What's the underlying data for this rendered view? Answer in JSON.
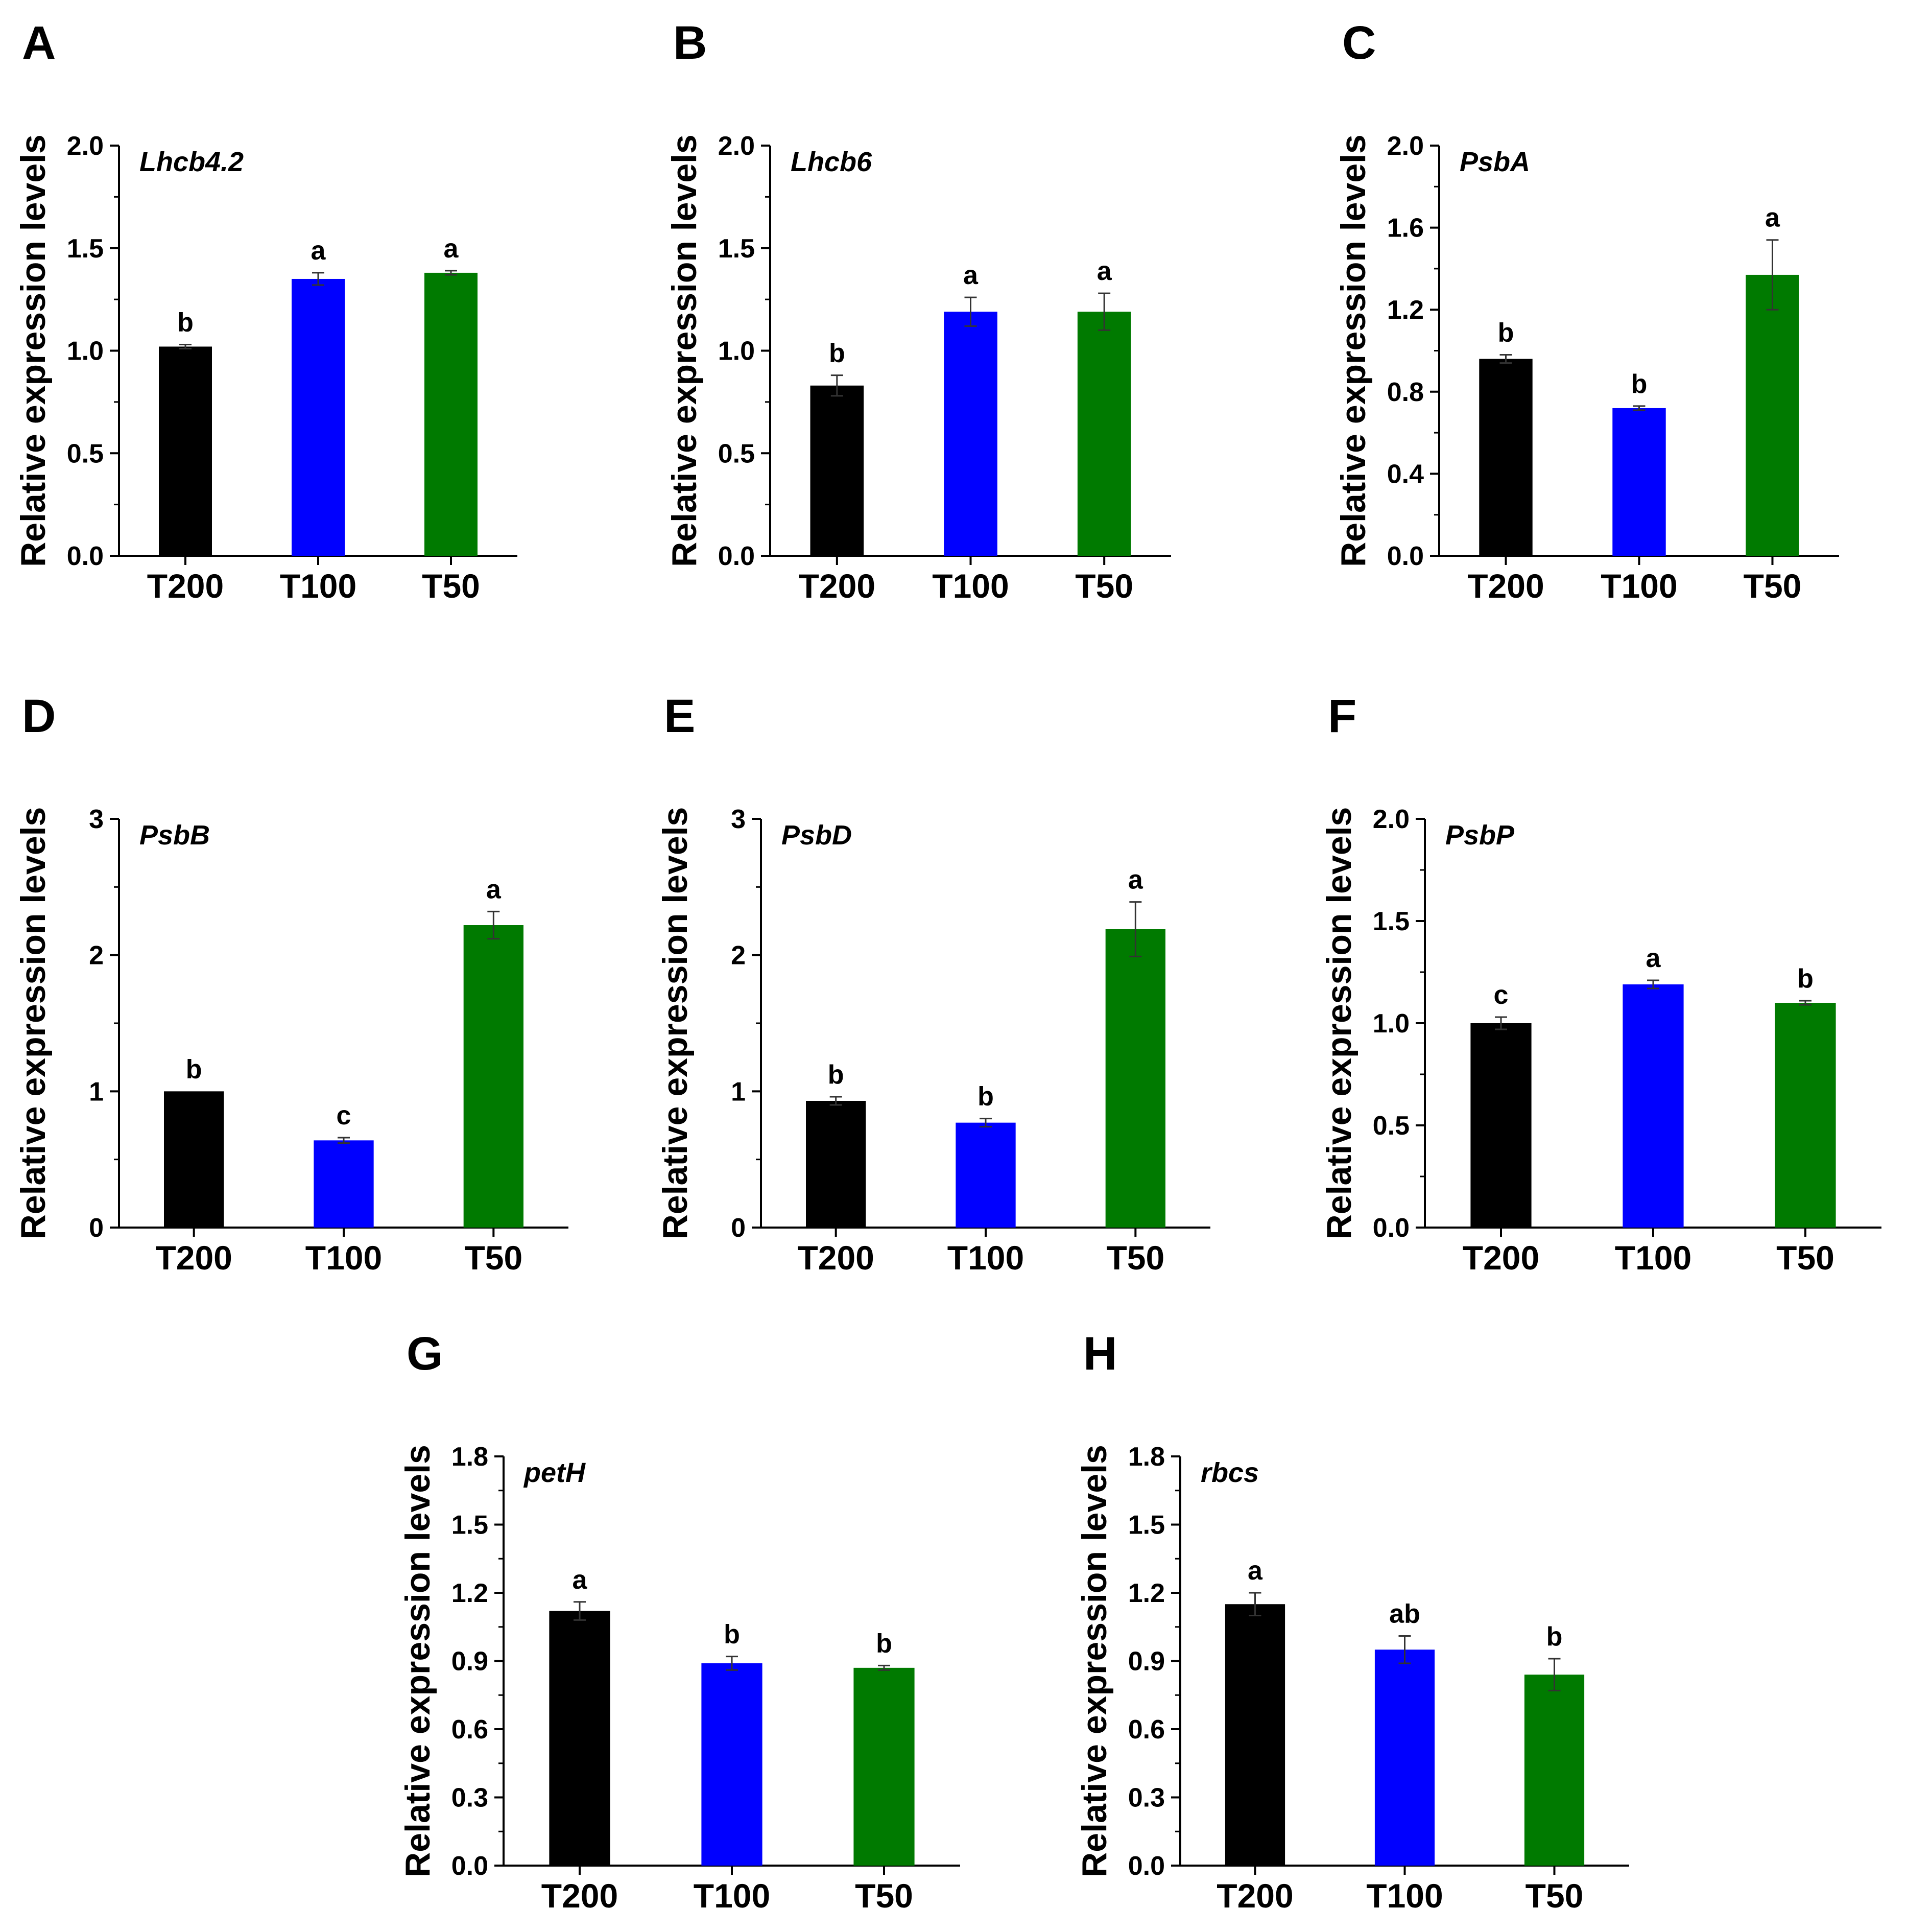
{
  "colors": {
    "T200": "#000000",
    "T100": "#0000ff",
    "T50": "#007a00",
    "axis": "#000000"
  },
  "chart_data": [
    {
      "type": "bar",
      "panel": "A",
      "title": "Lhcb4.2",
      "ylabel": "Relative expression levels",
      "categories": [
        "T200",
        "T100",
        "T50"
      ],
      "values": [
        1.02,
        1.35,
        1.38
      ],
      "errors": [
        0.01,
        0.03,
        0.01
      ],
      "significance": [
        "b",
        "a",
        "a"
      ],
      "ylim": [
        0,
        2.0
      ],
      "yticks": [
        0,
        0.5,
        1.0,
        1.5,
        2.0
      ],
      "ytick_labels": [
        "0.0",
        "0.5",
        "1.0",
        "1.5",
        "2.0"
      ]
    },
    {
      "type": "bar",
      "panel": "B",
      "title": "Lhcb6",
      "ylabel": "Relative expression levels",
      "categories": [
        "T200",
        "T100",
        "T50"
      ],
      "values": [
        0.83,
        1.19,
        1.19
      ],
      "errors": [
        0.05,
        0.07,
        0.09
      ],
      "significance": [
        "b",
        "a",
        "a"
      ],
      "ylim": [
        0,
        2.0
      ],
      "yticks": [
        0,
        0.5,
        1.0,
        1.5,
        2.0
      ],
      "ytick_labels": [
        "0.0",
        "0.5",
        "1.0",
        "1.5",
        "2.0"
      ]
    },
    {
      "type": "bar",
      "panel": "C",
      "title": "PsbA",
      "ylabel": "Relative expression levels",
      "categories": [
        "T200",
        "T100",
        "T50"
      ],
      "values": [
        0.96,
        0.72,
        1.37
      ],
      "errors": [
        0.02,
        0.01,
        0.17
      ],
      "significance": [
        "b",
        "b",
        "a"
      ],
      "ylim": [
        0,
        2.0
      ],
      "yticks": [
        0,
        0.4,
        0.8,
        1.2,
        1.6,
        2.0
      ],
      "ytick_labels": [
        "0.0",
        "0.4",
        "0.8",
        "1.2",
        "1.6",
        "2.0"
      ]
    },
    {
      "type": "bar",
      "panel": "D",
      "title": "PsbB",
      "ylabel": "Relative expression levels",
      "categories": [
        "T200",
        "T100",
        "T50"
      ],
      "values": [
        1.0,
        0.64,
        2.22
      ],
      "errors": [
        0.0,
        0.02,
        0.1
      ],
      "significance": [
        "b",
        "c",
        "a"
      ],
      "ylim": [
        0,
        3
      ],
      "yticks": [
        0,
        1,
        2,
        3
      ],
      "ytick_labels": [
        "0",
        "1",
        "2",
        "3"
      ]
    },
    {
      "type": "bar",
      "panel": "E",
      "title": "PsbD",
      "ylabel": "Relative expression levels",
      "categories": [
        "T200",
        "T100",
        "T50"
      ],
      "values": [
        0.93,
        0.77,
        2.19
      ],
      "errors": [
        0.03,
        0.03,
        0.2
      ],
      "significance": [
        "b",
        "b",
        "a"
      ],
      "ylim": [
        0,
        3
      ],
      "yticks": [
        0,
        1,
        2,
        3
      ],
      "ytick_labels": [
        "0",
        "1",
        "2",
        "3"
      ]
    },
    {
      "type": "bar",
      "panel": "F",
      "title": "PsbP",
      "ylabel": "Relative expression levels",
      "categories": [
        "T200",
        "T100",
        "T50"
      ],
      "values": [
        1.0,
        1.19,
        1.1
      ],
      "errors": [
        0.03,
        0.02,
        0.01
      ],
      "significance": [
        "c",
        "a",
        "b"
      ],
      "ylim": [
        0,
        2.0
      ],
      "yticks": [
        0,
        0.5,
        1.0,
        1.5,
        2.0
      ],
      "ytick_labels": [
        "0.0",
        "0.5",
        "1.0",
        "1.5",
        "2.0"
      ]
    },
    {
      "type": "bar",
      "panel": "G",
      "title": "petH",
      "ylabel": "Relative expression levels",
      "categories": [
        "T200",
        "T100",
        "T50"
      ],
      "values": [
        1.12,
        0.89,
        0.87
      ],
      "errors": [
        0.04,
        0.03,
        0.01
      ],
      "significance": [
        "a",
        "b",
        "b"
      ],
      "ylim": [
        0,
        1.8
      ],
      "yticks": [
        0,
        0.3,
        0.6,
        0.9,
        1.2,
        1.5,
        1.8
      ],
      "ytick_labels": [
        "0.0",
        "0.3",
        "0.6",
        "0.9",
        "1.2",
        "1.5",
        "1.8"
      ]
    },
    {
      "type": "bar",
      "panel": "H",
      "title": "rbcs",
      "ylabel": "Relative expression levels",
      "categories": [
        "T200",
        "T100",
        "T50"
      ],
      "values": [
        1.15,
        0.95,
        0.84
      ],
      "errors": [
        0.05,
        0.06,
        0.07
      ],
      "significance": [
        "a",
        "ab",
        "b"
      ],
      "ylim": [
        0,
        1.8
      ],
      "yticks": [
        0,
        0.3,
        0.6,
        0.9,
        1.2,
        1.5,
        1.8
      ],
      "ytick_labels": [
        "0.0",
        "0.3",
        "0.6",
        "0.9",
        "1.2",
        "1.5",
        "1.8"
      ]
    }
  ]
}
